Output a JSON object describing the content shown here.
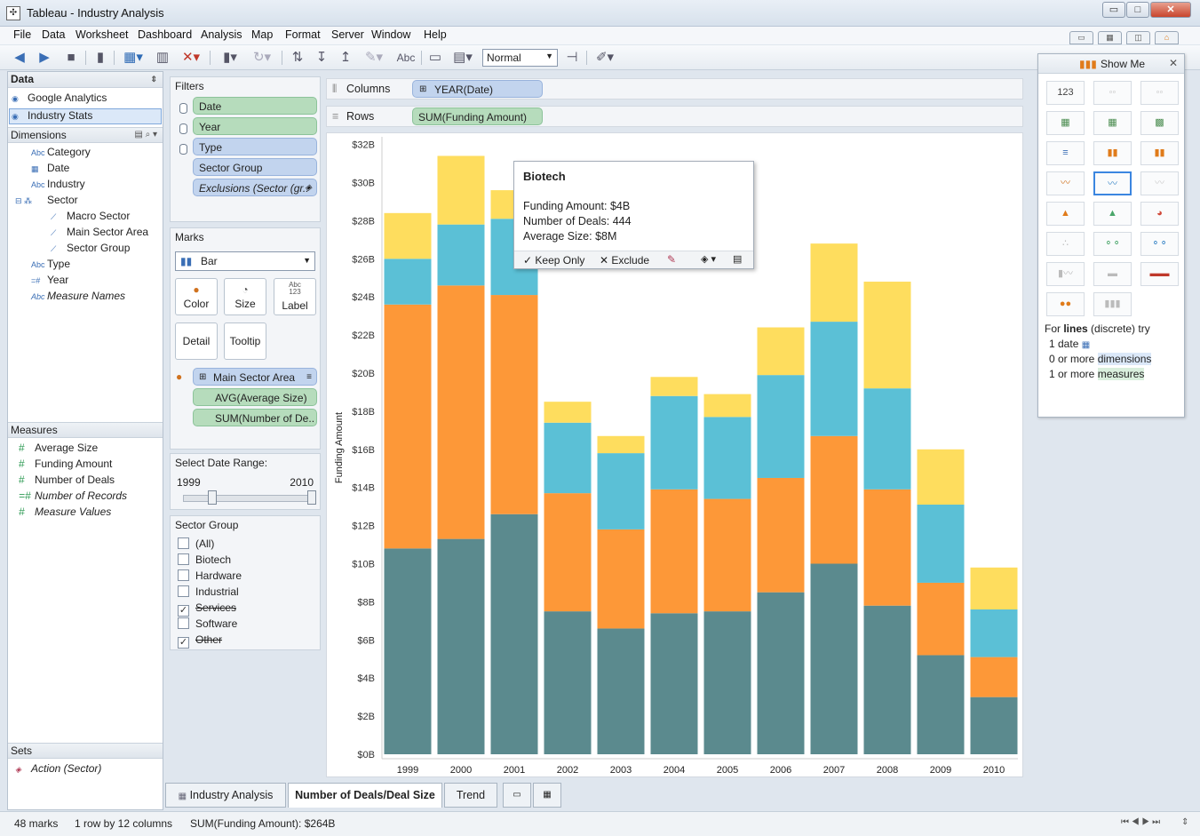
{
  "window": {
    "title": "Tableau - Industry Analysis",
    "minimize": "▭",
    "maximize": "□",
    "close": "✕"
  },
  "menu": [
    "File",
    "Data",
    "Worksheet",
    "Dashboard",
    "Analysis",
    "Map",
    "Format",
    "Server",
    "Window",
    "Help"
  ],
  "toolbar": {
    "label_button": "Abc",
    "fit_select": "Normal"
  },
  "data_panel": {
    "header": "Data",
    "sources": [
      "Google Analytics",
      "Industry Stats"
    ],
    "dimensions_header": "Dimensions",
    "dimensions": [
      {
        "type": "Abc",
        "name": "Category"
      },
      {
        "type": "date",
        "name": "Date"
      },
      {
        "type": "Abc",
        "name": "Industry"
      },
      {
        "type": "hier",
        "name": "Sector"
      },
      {
        "type": "set",
        "name": "Macro Sector"
      },
      {
        "type": "set",
        "name": "Main Sector Area"
      },
      {
        "type": "set",
        "name": "Sector Group"
      },
      {
        "type": "Abc",
        "name": "Type"
      },
      {
        "type": "=#",
        "name": "Year"
      },
      {
        "type": "Abc",
        "name": "Measure Names"
      }
    ],
    "measures_header": "Measures",
    "measures": [
      "Average Size",
      "Funding Amount",
      "Number of Deals",
      "Number of Records",
      "Measure Values"
    ],
    "sets_header": "Sets",
    "sets": [
      "Action (Sector)"
    ]
  },
  "filters": {
    "title": "Filters",
    "items": [
      "Date",
      "Year",
      "Type",
      "Sector Group",
      "Exclusions (Sector (gr.."
    ]
  },
  "marks": {
    "title": "Marks",
    "mark_type": "Bar",
    "buttons": [
      "Color",
      "Size",
      "Label",
      "Detail",
      "Tooltip"
    ],
    "label_icon_top": "Abc",
    "label_icon_bottom": "123",
    "pills": [
      "Main Sector Area",
      "AVG(Average Size)",
      "SUM(Number of De.."
    ]
  },
  "date_range": {
    "title": "Select Date Range:",
    "min": "1999",
    "max": "2010"
  },
  "sector_group": {
    "title": "Sector Group",
    "items": [
      {
        "label": "(All)",
        "checked": false,
        "strike": false
      },
      {
        "label": "Biotech",
        "checked": false,
        "strike": false
      },
      {
        "label": "Hardware",
        "checked": false,
        "strike": false
      },
      {
        "label": "Industrial",
        "checked": false,
        "strike": false
      },
      {
        "label": "Services",
        "checked": true,
        "strike": true
      },
      {
        "label": "Software",
        "checked": false,
        "strike": false
      },
      {
        "label": "Other",
        "checked": true,
        "strike": true
      }
    ]
  },
  "shelves": {
    "columns_label": "Columns",
    "columns_pill": "YEAR(Date)",
    "rows_label": "Rows",
    "rows_pill": "SUM(Funding Amount)"
  },
  "chart_data": {
    "type": "bar",
    "stacked": true,
    "ylabel": "Funding Amount",
    "ylim": [
      0,
      33
    ],
    "yticks": [
      "$0B",
      "$2B",
      "$4B",
      "$6B",
      "$8B",
      "$10B",
      "$12B",
      "$14B",
      "$16B",
      "$18B",
      "$20B",
      "$22B",
      "$24B",
      "$26B",
      "$28B",
      "$30B",
      "$32B"
    ],
    "categories": [
      "1999",
      "2000",
      "2001",
      "2002",
      "2003",
      "2004",
      "2005",
      "2006",
      "2007",
      "2008",
      "2009",
      "2010"
    ],
    "series": [
      {
        "color": "#5b8a8e",
        "values": [
          10.8,
          11.3,
          12.6,
          7.5,
          6.6,
          7.4,
          7.5,
          8.5,
          10.0,
          7.8,
          5.2,
          3.0
        ]
      },
      {
        "color": "#fd9838",
        "values": [
          12.8,
          13.3,
          11.5,
          6.2,
          5.2,
          6.5,
          5.9,
          6.0,
          6.7,
          6.1,
          3.8,
          2.1
        ]
      },
      {
        "color": "#5bc0d6",
        "values": [
          2.4,
          3.2,
          4.0,
          3.7,
          4.0,
          4.9,
          4.3,
          5.4,
          6.0,
          5.3,
          4.1,
          2.5
        ]
      },
      {
        "color": "#fedd5e",
        "values": [
          2.4,
          3.6,
          1.5,
          1.1,
          0.9,
          1.0,
          1.2,
          2.5,
          4.1,
          5.6,
          2.9,
          2.2
        ]
      }
    ]
  },
  "tooltip": {
    "title": "Biotech",
    "lines": [
      "Funding Amount: $4B",
      "Number of Deals: 444",
      "Average Size: $8M"
    ],
    "keep_only": "✓ Keep Only",
    "exclude": "✕ Exclude"
  },
  "show_me": {
    "title": "Show Me",
    "hint_prefix": "For",
    "hint_bold": "lines",
    "hint_suffix": "(discrete) try",
    "req1": "1 date",
    "req2_prefix": "0 or more",
    "req2_hl": "dimensions",
    "req3_prefix": "1 or more",
    "req3_hl": "measures"
  },
  "sheet_tabs": [
    "Industry Analysis",
    "Number of Deals/Deal Size",
    "Trend"
  ],
  "status": {
    "marks": "48 marks",
    "dims": "1 row by 12 columns",
    "sum": "SUM(Funding Amount): $264B"
  }
}
